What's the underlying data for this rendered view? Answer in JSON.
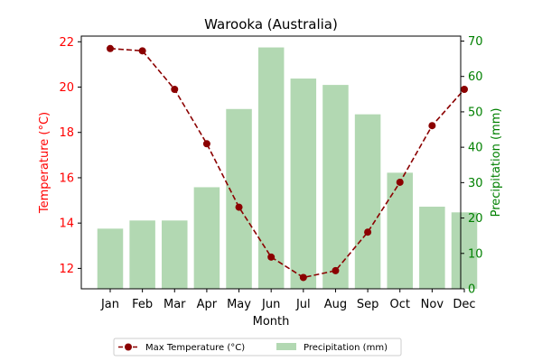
{
  "chart_data": {
    "type": "bar+line",
    "title": "Warooka (Australia)",
    "xlabel": "Month",
    "categories": [
      "Jan",
      "Feb",
      "Mar",
      "Apr",
      "May",
      "Jun",
      "Jul",
      "Aug",
      "Sep",
      "Oct",
      "Nov",
      "Dec"
    ],
    "left_axis": {
      "label": "Temperature (°C)",
      "color": "#ff0000",
      "range": [
        11.1,
        22.25
      ],
      "ticks": [
        12,
        14,
        16,
        18,
        20,
        22
      ]
    },
    "right_axis": {
      "label": "Precipitation (mm)",
      "color": "#008000",
      "range": [
        0,
        71.4
      ],
      "ticks": [
        0,
        10,
        20,
        30,
        40,
        50,
        60,
        70
      ]
    },
    "series": [
      {
        "name": "Max Temperature (°C)",
        "kind": "line",
        "axis": "left",
        "color": "#8b0000",
        "style": "dashed-with-circle-markers",
        "values": [
          21.7,
          21.6,
          19.9,
          17.5,
          14.7,
          12.5,
          11.6,
          11.9,
          13.6,
          15.8,
          18.3,
          19.9
        ]
      },
      {
        "name": "Precipitation (mm)",
        "kind": "bar",
        "axis": "right",
        "color": "#b2d8b2",
        "values": [
          17,
          19.3,
          19.3,
          28.7,
          50.8,
          68.2,
          59.4,
          57.6,
          49.3,
          32.8,
          23.2,
          21.6
        ]
      }
    ],
    "legend": {
      "placement": "bottom-center",
      "columns": 2
    },
    "grid": false
  }
}
